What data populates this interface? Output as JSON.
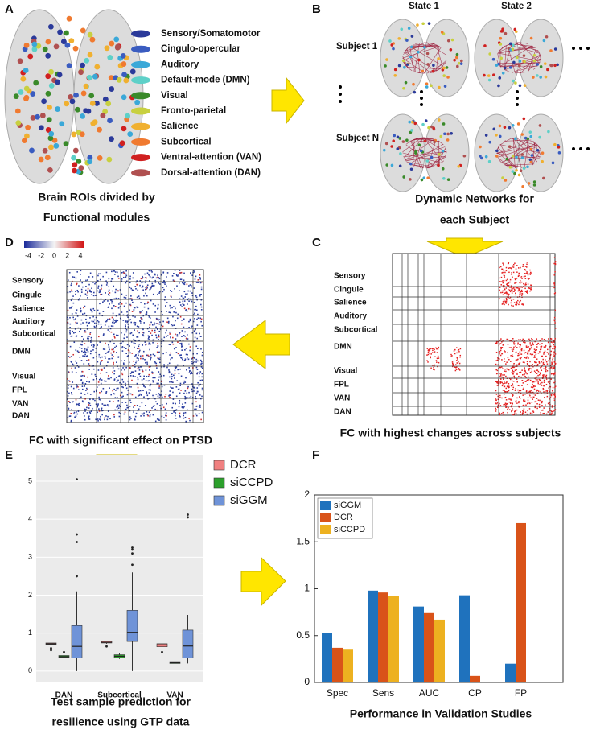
{
  "panels": {
    "a": {
      "label": "A",
      "modules": [
        {
          "name": "Sensory/Somatomotor",
          "color": "#2b3a9a"
        },
        {
          "name": "Cingulo-opercular",
          "color": "#3a5cc0"
        },
        {
          "name": "Auditory",
          "color": "#3aa8d8"
        },
        {
          "name": "Default-mode (DMN)",
          "color": "#5ed0c8"
        },
        {
          "name": "Visual",
          "color": "#3a8a2a"
        },
        {
          "name": "Fronto-parietal",
          "color": "#c8d040"
        },
        {
          "name": "Salience",
          "color": "#f0b030"
        },
        {
          "name": "Subcortical",
          "color": "#f07a30"
        },
        {
          "name": "Ventral-attention (VAN)",
          "color": "#d02020"
        },
        {
          "name": "Dorsal-attention (DAN)",
          "color": "#b05050"
        }
      ],
      "caption": [
        "Brain ROIs divided by",
        "Functional modules"
      ]
    },
    "b": {
      "label": "B",
      "states": [
        "State 1",
        "State 2"
      ],
      "subjects": [
        "Subject 1",
        "Subject N"
      ],
      "caption": [
        "Dynamic Networks for",
        "each Subject"
      ]
    },
    "c": {
      "label": "C",
      "rows": [
        "Sensory",
        "Cingule",
        "Salience",
        "Auditory",
        "Subcortical",
        "DMN",
        "Visual",
        "FPL",
        "VAN",
        "DAN"
      ],
      "caption": "FC with highest changes across subjects"
    },
    "d": {
      "label": "D",
      "colorbar_ticks": [
        -4,
        -2,
        0,
        2,
        4
      ],
      "rows": [
        "Sensory",
        "Cingule",
        "Salience",
        "Auditory",
        "Subcortical",
        "DMN",
        "Visual",
        "FPL",
        "VAN",
        "DAN"
      ],
      "caption": "FC with significant effect on PTSD"
    },
    "e": {
      "label": "E",
      "caption": [
        "Test sample prediction for",
        "resilience using GTP data"
      ]
    },
    "f": {
      "label": "F",
      "caption": "Performance in Validation Studies"
    }
  },
  "chart_data": [
    {
      "type": "box",
      "categories": [
        "DAN",
        "Subcortical",
        "VAN"
      ],
      "ylim": [
        -0.3,
        5.7
      ],
      "yticks": [
        0,
        1,
        2,
        3,
        4,
        5
      ],
      "grid": true,
      "legend": "right",
      "series": [
        {
          "name": "DCR",
          "color": "#f08080",
          "boxes": [
            {
              "low": 0.68,
              "q1": 0.7,
              "median": 0.72,
              "q3": 0.74,
              "high": 0.76,
              "outliers": [
                0.6,
                0.55
              ]
            },
            {
              "low": 0.72,
              "q1": 0.74,
              "median": 0.76,
              "q3": 0.79,
              "high": 0.8,
              "outliers": [
                0.65
              ]
            },
            {
              "low": 0.6,
              "q1": 0.64,
              "median": 0.69,
              "q3": 0.72,
              "high": 0.75,
              "outliers": [
                0.5
              ]
            }
          ]
        },
        {
          "name": "siCCPD",
          "color": "#2ca02c",
          "boxes": [
            {
              "low": 0.35,
              "q1": 0.36,
              "median": 0.38,
              "q3": 0.41,
              "high": 0.43,
              "outliers": [
                0.5
              ]
            },
            {
              "low": 0.32,
              "q1": 0.35,
              "median": 0.39,
              "q3": 0.43,
              "high": 0.47,
              "outliers": []
            },
            {
              "low": 0.17,
              "q1": 0.2,
              "median": 0.22,
              "q3": 0.25,
              "high": 0.27,
              "outliers": []
            }
          ]
        },
        {
          "name": "siGGM",
          "color": "#6f93d8",
          "boxes": [
            {
              "low": 0,
              "q1": 0.35,
              "median": 0.65,
              "q3": 1.2,
              "high": 2.1,
              "outliers": [
                2.5,
                3.4,
                3.6,
                5.05
              ]
            },
            {
              "low": 0,
              "q1": 0.78,
              "median": 1.02,
              "q3": 1.6,
              "high": 2.6,
              "outliers": [
                2.8,
                3.1,
                3.2,
                3.25
              ]
            },
            {
              "low": 0.2,
              "q1": 0.35,
              "median": 0.66,
              "q3": 1.08,
              "high": 1.48,
              "outliers": [
                4.05,
                4.12
              ]
            }
          ]
        }
      ]
    },
    {
      "type": "bar",
      "categories": [
        "Spec",
        "Sens",
        "AUC",
        "CP",
        "FP"
      ],
      "ylim": [
        0,
        2
      ],
      "yticks": [
        0,
        0.5,
        1,
        1.5,
        2
      ],
      "legend": "upper left",
      "series": [
        {
          "name": "siGGM",
          "color": "#1f72bd",
          "values": [
            0.53,
            0.98,
            0.81,
            0.93,
            0.2
          ]
        },
        {
          "name": "DCR",
          "color": "#d95319",
          "values": [
            0.37,
            0.96,
            0.74,
            0.07,
            1.7
          ]
        },
        {
          "name": "siCCPD",
          "color": "#edb120",
          "values": [
            0.35,
            0.92,
            0.67,
            null,
            null
          ]
        }
      ]
    }
  ]
}
